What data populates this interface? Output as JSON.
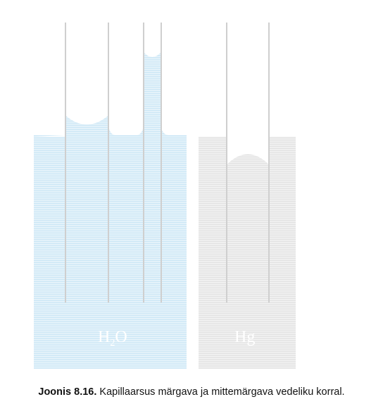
{
  "figure": {
    "water": {
      "label_main": "H",
      "label_sub": "2",
      "label_tail": "O",
      "color": "#d3eaf7"
    },
    "mercury": {
      "label": "Hg",
      "color": "#e6e6e6"
    },
    "tube_color": "#cfcfcf",
    "line_color": "#ffffff"
  },
  "caption": {
    "number": "Joonis 8.16.",
    "text": " Kapillaarsus märgava ja mittemärgava vedeliku korral."
  }
}
